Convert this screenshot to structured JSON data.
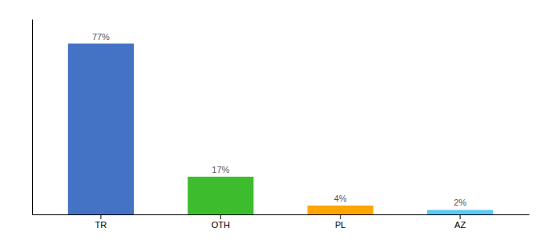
{
  "chart_data": {
    "type": "bar",
    "categories": [
      "TR",
      "OTH",
      "PL",
      "AZ"
    ],
    "values": [
      77,
      17,
      4,
      2
    ],
    "value_labels": [
      "77%",
      "17%",
      "4%",
      "2%"
    ],
    "colors": [
      "#4472C4",
      "#3DBD2E",
      "#FFA500",
      "#5BC8F5"
    ],
    "ylim": [
      0,
      88
    ],
    "data_labels": true,
    "tick_labels": "x",
    "grid": false
  }
}
